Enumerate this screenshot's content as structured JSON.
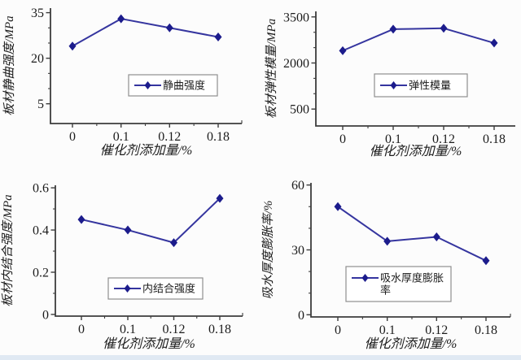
{
  "figure": {
    "background": "#fcfcfc",
    "bottom_strip_color": "#e0e9f3",
    "line_color": "#35359f",
    "marker_color": "#1c1c8c",
    "axis_color": "#3c3c3c",
    "text_color": "#1c1c1c",
    "legend_border_color": "#8f8f8f"
  },
  "chart_data": [
    {
      "type": "line",
      "name": "static-bending-strength",
      "ylabel": "板材静曲强度/MPa",
      "xlabel": "催化剂添加量/%",
      "legend_label": "静曲强度",
      "legend_lines": [
        "静曲强度"
      ],
      "categories": [
        "0",
        "0.1",
        "0.12",
        "0.18"
      ],
      "series": [
        {
          "name": "静曲强度",
          "values": [
            24,
            33,
            30,
            27
          ]
        }
      ],
      "yticks": [
        5,
        20,
        35
      ],
      "ylim": [
        -1.5,
        36.5
      ],
      "marker": "diamond",
      "grid": false,
      "legend_position": "inside-center-right"
    },
    {
      "type": "line",
      "name": "elastic-modulus",
      "ylabel": "板材弹性模量/MPa",
      "xlabel": "催化剂添加量/%",
      "legend_label": "弹性模量",
      "legend_lines": [
        "弹性模量"
      ],
      "categories": [
        "0",
        "0.1",
        "0.12",
        "0.18"
      ],
      "series": [
        {
          "name": "弹性模量",
          "values": [
            2400,
            3100,
            3130,
            2650
          ]
        }
      ],
      "yticks": [
        500,
        2000,
        3500
      ],
      "ylim": [
        -50,
        3680
      ],
      "marker": "diamond",
      "grid": false,
      "legend_position": "inside-center"
    },
    {
      "type": "line",
      "name": "internal-bond-strength",
      "ylabel": "板材内结合强度/MPa",
      "xlabel": "催化剂添加量/%",
      "legend_label": "内结合强度",
      "legend_lines": [
        "内结合强度"
      ],
      "categories": [
        "0",
        "0.1",
        "0.12",
        "0.18"
      ],
      "series": [
        {
          "name": "内结合强度",
          "values": [
            0.45,
            0.4,
            0.34,
            0.55
          ]
        }
      ],
      "yticks": [
        0,
        0.2,
        0.4,
        0.6
      ],
      "ylim": [
        -0.008,
        0.612
      ],
      "marker": "diamond",
      "grid": false,
      "legend_position": "inside-bottom-center"
    },
    {
      "type": "line",
      "name": "thickness-swelling-rate",
      "ylabel": "吸水厚度膨胀率/%",
      "xlabel": "催化剂添加量/%",
      "legend_label": "吸水厚度膨胀率",
      "legend_lines": [
        "吸水厚度膨胀",
        "率"
      ],
      "categories": [
        "0",
        "0.1",
        "0.12",
        "0.18"
      ],
      "series": [
        {
          "name": "吸水厚度膨胀率",
          "values": [
            50,
            34,
            36,
            25
          ]
        }
      ],
      "yticks": [
        0,
        30,
        60
      ],
      "ylim": [
        -1,
        61
      ],
      "marker": "diamond",
      "grid": false,
      "legend_position": "inside-center"
    }
  ]
}
